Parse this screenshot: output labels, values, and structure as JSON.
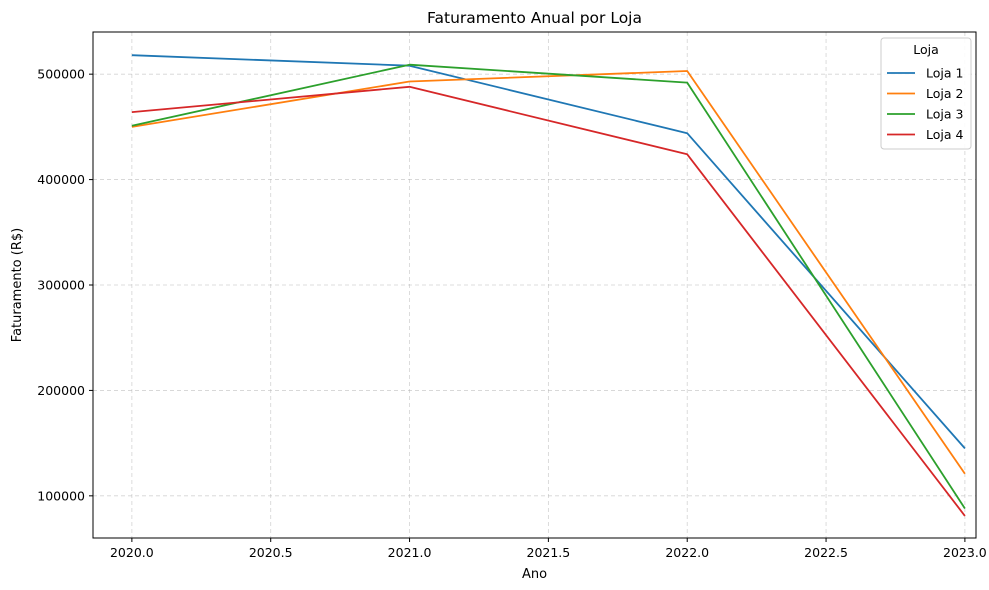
{
  "chart_data": {
    "type": "line",
    "title": "Faturamento Anual por Loja",
    "xlabel": "Ano",
    "ylabel": "Faturamento (R$)",
    "x": [
      2020,
      2021,
      2022,
      2023
    ],
    "xlim": [
      2019.86,
      2023.04
    ],
    "ylim": [
      60000,
      540000
    ],
    "xticks": [
      2020.0,
      2020.5,
      2021.0,
      2021.5,
      2022.0,
      2022.5,
      2023.0
    ],
    "xtick_labels": [
      "2020.0",
      "2020.5",
      "2021.0",
      "2021.5",
      "2022.0",
      "2022.5",
      "2023.0"
    ],
    "yticks": [
      100000,
      200000,
      300000,
      400000,
      500000
    ],
    "ytick_labels": [
      "100000",
      "200000",
      "300000",
      "400000",
      "500000"
    ],
    "grid": true,
    "legend": {
      "title": "Loja",
      "placement": "top-right"
    },
    "series": [
      {
        "name": "Loja 1",
        "color": "#1f77b4",
        "values": [
          518000,
          508000,
          444000,
          145000
        ]
      },
      {
        "name": "Loja 2",
        "color": "#ff7f0e",
        "values": [
          450000,
          493000,
          503000,
          121000
        ]
      },
      {
        "name": "Loja 3",
        "color": "#2ca02c",
        "values": [
          451000,
          509000,
          492000,
          88000
        ]
      },
      {
        "name": "Loja 4",
        "color": "#d62728",
        "values": [
          464000,
          488000,
          424000,
          81000
        ]
      }
    ]
  }
}
